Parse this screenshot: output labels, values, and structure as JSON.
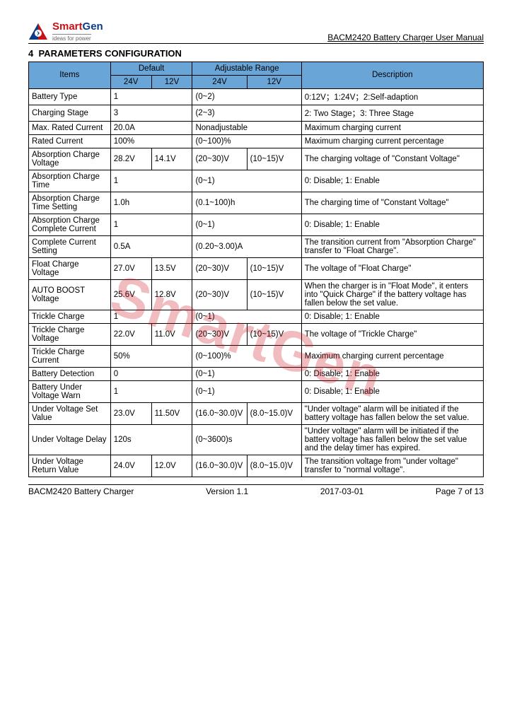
{
  "header": {
    "brand_red": "Smart",
    "brand_black": "Gen",
    "tagline": "ideas for power",
    "doc_title": "BACM2420 Battery Charger User Manual"
  },
  "section": {
    "number": "4",
    "title": "PARAMETERS CONFIGURATION"
  },
  "table": {
    "head": {
      "items": "Items",
      "default": "Default",
      "range": "Adjustable Range",
      "desc": "Description",
      "v24": "24V",
      "v12": "12V"
    },
    "rows": [
      {
        "item": "Battery Type",
        "d24": "1",
        "d12": "",
        "r24": "(0~2)",
        "r12": "",
        "desc": "0:12V；1:24V；2:Self-adaption",
        "span_d": true,
        "span_r": true
      },
      {
        "item": "Charging Stage",
        "d24": "3",
        "d12": "",
        "r24": "(2~3)",
        "r12": "",
        "desc": "2: Two Stage；3: Three Stage",
        "span_d": true,
        "span_r": true
      },
      {
        "item": "Max. Rated Current",
        "d24": "20.0A",
        "d12": "",
        "r24": "Nonadjustable",
        "r12": "",
        "desc": "Maximum charging current",
        "span_d": true,
        "span_r": true
      },
      {
        "item": "Rated Current",
        "d24": "100%",
        "d12": "",
        "r24": "(0~100)%",
        "r12": "",
        "desc": "Maximum charging current percentage",
        "span_d": true,
        "span_r": true
      },
      {
        "item": "Absorption Charge Voltage",
        "d24": "28.2V",
        "d12": "14.1V",
        "r24": "(20~30)V",
        "r12": "(10~15)V",
        "desc": "The charging voltage of \"Constant Voltage\""
      },
      {
        "item": "Absorption Charge Time",
        "d24": "1",
        "d12": "",
        "r24": "(0~1)",
        "r12": "",
        "desc": "0: Disable; 1: Enable",
        "span_d": true,
        "span_r": true
      },
      {
        "item": "Absorption Charge Time Setting",
        "d24": "1.0h",
        "d12": "",
        "r24": "(0.1~100)h",
        "r12": "",
        "desc": "The charging time of \"Constant Voltage\"",
        "span_d": true,
        "span_r": true
      },
      {
        "item": "Absorption Charge Complete Current",
        "d24": "1",
        "d12": "",
        "r24": "(0~1)",
        "r12": "",
        "desc": "0: Disable; 1: Enable",
        "span_d": true,
        "span_r": true
      },
      {
        "item": "Complete Current Setting",
        "d24": "0.5A",
        "d12": "",
        "r24": "(0.20~3.00)A",
        "r12": "",
        "desc": "The transition current from \"Absorption Charge\" transfer to \"Float Charge\".",
        "span_d": true,
        "span_r": true
      },
      {
        "item": "Float Charge Voltage",
        "d24": "27.0V",
        "d12": "13.5V",
        "r24": "(20~30)V",
        "r12": "(10~15)V",
        "desc": "The voltage of \"Float Charge\""
      },
      {
        "item": "AUTO BOOST Voltage",
        "d24": "25.6V",
        "d12": "12.8V",
        "r24": "(20~30)V",
        "r12": "(10~15)V",
        "desc": "When the charger is in \"Float Mode\", it enters into \"Quick Charge\" if the battery voltage has fallen below the set value."
      },
      {
        "item": "Trickle Charge",
        "d24": "1",
        "d12": "",
        "r24": "(0~1)",
        "r12": "",
        "desc": "0: Disable; 1: Enable",
        "span_d": true,
        "span_r": true
      },
      {
        "item": "Trickle Charge Voltage",
        "d24": "22.0V",
        "d12": "11.0V",
        "r24": "(20~30)V",
        "r12": "(10~15)V",
        "desc": "The voltage of \"Trickle Charge\""
      },
      {
        "item": "Trickle Charge Current",
        "d24": "50%",
        "d12": "",
        "r24": "(0~100)%",
        "r12": "",
        "desc": "Maximum charging current percentage",
        "span_d": true,
        "span_r": true
      },
      {
        "item": "Battery Detection",
        "d24": "0",
        "d12": "",
        "r24": "(0~1)",
        "r12": "",
        "desc": "0: Disable; 1: Enable",
        "span_d": true,
        "span_r": true
      },
      {
        "item": "Battery Under Voltage Warn",
        "d24": "1",
        "d12": "",
        "r24": "(0~1)",
        "r12": "",
        "desc": "0: Disable; 1: Enable",
        "span_d": true,
        "span_r": true
      },
      {
        "item": "Under Voltage Set Value",
        "d24": "23.0V",
        "d12": "11.50V",
        "r24": "(16.0~30.0)V",
        "r12": "(8.0~15.0)V",
        "desc": "\"Under voltage\" alarm will be initiated if the battery voltage has fallen below the set value."
      },
      {
        "item": "Under Voltage Delay",
        "d24": "120s",
        "d12": "",
        "r24": "(0~3600)s",
        "r12": "",
        "desc": "\"Under voltage\" alarm will be initiated if the battery voltage has fallen below the set value and the delay timer has expired.",
        "span_d": true,
        "span_r": true
      },
      {
        "item": "Under Voltage Return Value",
        "d24": "24.0V",
        "d12": "12.0V",
        "r24": "(16.0~30.0)V",
        "r12": "(8.0~15.0)V",
        "desc": "The transition voltage from \"under voltage\" transfer to \"normal voltage\"."
      }
    ]
  },
  "watermark": "SmartGen",
  "footer": {
    "left": "BACM2420 Battery Charger",
    "version": "Version 1.1",
    "date": "2017-03-01",
    "page": "Page 7 of 13"
  },
  "colors": {
    "header_bg": "#6aa5d8",
    "brand_red": "#c81018",
    "brand_blue": "#0b3b85",
    "watermark": "rgba(200,16,24,0.28)"
  }
}
